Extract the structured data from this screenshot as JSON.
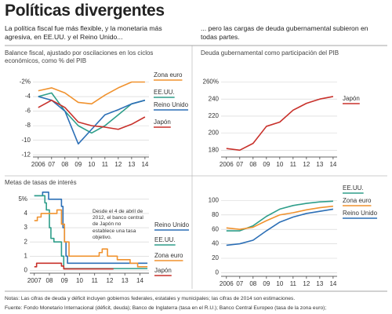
{
  "header": {
    "title": "Políticas divergentes",
    "left_subtitle": "La política fiscal fue más flexible, y la monetaria más agresiva, en EE.UU. y el Reino Unido...",
    "right_subtitle": "... pero las cargas de deuda gubernamental subieron en todas partes."
  },
  "footer": {
    "notes": "Notas: Las cifras de deuda y déficit incluyen gobiernos federales, estatales y municipales; las cifras de 2014 son estimaciones.",
    "source": "Fuente: Fondo Monetario Internacional (déficit, deuda); Banco de Inglaterra (tasa en el R.U.); Banco Central Europeo (tasa de la zona euro);"
  },
  "chart_data": [
    {
      "type": "line",
      "title": "Balance fiscal, ajustado por oscilaciones en los ciclos económicos, como % del PIB",
      "x": [
        2006,
        2007,
        2008,
        2009,
        2010,
        2011,
        2012,
        2013,
        2014
      ],
      "series": [
        {
          "name": "Zona euro",
          "color": "#f0922e",
          "values": [
            -3.2,
            -2.8,
            -3.5,
            -4.8,
            -5,
            -3.8,
            -2.8,
            -2,
            -2
          ]
        },
        {
          "name": "EE.UU.",
          "color": "#2e9e8a",
          "values": [
            -4,
            -3.5,
            -6,
            -8,
            -9,
            -8,
            -6.5,
            -5,
            -4.5
          ]
        },
        {
          "name": "Reino Unido",
          "color": "#2c6fb6",
          "values": [
            -4,
            -4.5,
            -6,
            -10.5,
            -8.5,
            -6.5,
            -5.8,
            -5,
            -4.5
          ]
        },
        {
          "name": "Japón",
          "color": "#c8312b",
          "values": [
            -5.5,
            -4.5,
            -5.5,
            -7.5,
            -8,
            -8.2,
            -8.5,
            -7.8,
            -6.8
          ]
        }
      ],
      "xlim": [
        2005.6,
        2014.3
      ],
      "ylim": [
        -12.3,
        -1.3
      ],
      "xticks": [
        2006,
        {
          "value": 2007,
          "label": "07"
        },
        {
          "value": 2008,
          "label": "08"
        },
        {
          "value": 2009,
          "label": "09"
        },
        {
          "value": 2010,
          "label": "10"
        },
        {
          "value": 2011,
          "label": "11"
        },
        {
          "value": 2012,
          "label": "12"
        },
        {
          "value": 2013,
          "label": "13"
        },
        {
          "value": 2014,
          "label": "14"
        }
      ],
      "yticks": [
        {
          "value": -2,
          "label": "-2%"
        },
        -4,
        -6,
        -8,
        -10,
        -12
      ],
      "grid": true
    },
    {
      "type": "line",
      "title": "Deuda gubernamental como participación del PIB",
      "x": [
        2006,
        2007,
        2008,
        2009,
        2010,
        2011,
        2012,
        2013,
        2014
      ],
      "series": [
        {
          "name": "Japón",
          "color": "#c8312b",
          "values": [
            182,
            180,
            188,
            208,
            213,
            227,
            235,
            240,
            243
          ]
        }
      ],
      "xlim": [
        2005.6,
        2014.3
      ],
      "ylim": [
        172,
        266
      ],
      "xticks": [
        2006,
        {
          "value": 2007,
          "label": "07"
        },
        {
          "value": 2008,
          "label": "08"
        },
        {
          "value": 2009,
          "label": "09"
        },
        {
          "value": 2010,
          "label": "10"
        },
        {
          "value": 2011,
          "label": "11"
        },
        {
          "value": 2012,
          "label": "12"
        },
        {
          "value": 2013,
          "label": "13"
        },
        {
          "value": 2014,
          "label": "14"
        }
      ],
      "yticks": [
        180,
        200,
        220,
        240,
        {
          "value": 260,
          "label": "260%"
        }
      ],
      "grid": true
    },
    {
      "type": "line",
      "title": "Metas de tasas de interés",
      "annotation": "Desde el 4 de abril de 2012, el banco central de Japón no establece una tasa objetivo.",
      "series": [
        {
          "name": "Reino Unido",
          "color": "#2c6fb6",
          "x": [
            2007,
            2007.55,
            2007.55,
            2007.95,
            2007.95,
            2008.8,
            2008.8,
            2008.9,
            2008.9,
            2009.0,
            2009.0,
            2009.1,
            2009.1,
            2009.2,
            2009.2,
            2014.5
          ],
          "values": [
            5.25,
            5.25,
            5.5,
            5.5,
            5,
            5,
            4.5,
            4.5,
            3,
            3,
            2,
            2,
            1,
            1,
            0.5,
            0.5
          ]
        },
        {
          "name": "EE.UU.",
          "color": "#2e9e8a",
          "x": [
            2007,
            2007.7,
            2007.7,
            2007.8,
            2007.8,
            2008.0,
            2008.0,
            2008.1,
            2008.1,
            2008.3,
            2008.3,
            2008.8,
            2008.8,
            2008.95,
            2008.95,
            2014.5
          ],
          "values": [
            5.25,
            5.25,
            4.75,
            4.75,
            4.25,
            4.25,
            3,
            3,
            2.25,
            2.25,
            2,
            2,
            1,
            1,
            0.125,
            0.125
          ]
        },
        {
          "name": "Zona euro",
          "color": "#f0922e",
          "x": [
            2007,
            2007.2,
            2007.2,
            2007.45,
            2007.45,
            2008.5,
            2008.5,
            2008.8,
            2008.8,
            2009.0,
            2009.0,
            2009.3,
            2009.3,
            2011.3,
            2011.3,
            2011.5,
            2011.5,
            2011.85,
            2011.85,
            2012.5,
            2012.5,
            2013.35,
            2013.35,
            2013.85,
            2013.85,
            2014.5
          ],
          "values": [
            3.5,
            3.5,
            3.75,
            3.75,
            4,
            4,
            4.25,
            4.25,
            3.25,
            3.25,
            2,
            2,
            1,
            1,
            1.25,
            1.25,
            1.5,
            1.5,
            1,
            1,
            0.75,
            0.75,
            0.5,
            0.5,
            0.25,
            0.25
          ]
        },
        {
          "name": "Japón",
          "color": "#c8312b",
          "x": [
            2007,
            2007.15,
            2007.15,
            2008.8,
            2008.8,
            2008.95,
            2008.95,
            2012.25
          ],
          "values": [
            0.25,
            0.25,
            0.5,
            0.5,
            0.3,
            0.3,
            0.1,
            0.1
          ]
        }
      ],
      "xlim": [
        2006.7,
        2014.6
      ],
      "ylim": [
        -0.2,
        5.6
      ],
      "xticks": [
        2007,
        {
          "value": 2008,
          "label": "08"
        },
        {
          "value": 2009,
          "label": "09"
        },
        {
          "value": 2010,
          "label": "10"
        },
        {
          "value": 2011,
          "label": "11"
        },
        {
          "value": 2012,
          "label": "12"
        },
        {
          "value": 2013,
          "label": "13"
        },
        {
          "value": 2014,
          "label": "14"
        }
      ],
      "yticks": [
        0,
        1,
        2,
        3,
        4,
        {
          "value": 5,
          "label": "5%"
        }
      ],
      "grid": true
    },
    {
      "type": "line",
      "x": [
        2006,
        2007,
        2008,
        2009,
        2010,
        2011,
        2012,
        2013,
        2014
      ],
      "series": [
        {
          "name": "EE.UU.",
          "color": "#2e9e8a",
          "values": [
            58,
            58,
            65,
            78,
            88,
            93,
            96,
            98,
            99
          ]
        },
        {
          "name": "Zona euro",
          "color": "#f0922e",
          "values": [
            62,
            60,
            63,
            72,
            80,
            83,
            87,
            90,
            92
          ]
        },
        {
          "name": "Reino Unido",
          "color": "#2c6fb6",
          "values": [
            38,
            40,
            45,
            58,
            70,
            77,
            82,
            85,
            88
          ]
        }
      ],
      "xlim": [
        2005.6,
        2014.3
      ],
      "ylim": [
        -5,
        108
      ],
      "xticks": [
        2006,
        {
          "value": 2007,
          "label": "07"
        },
        {
          "value": 2008,
          "label": "08"
        },
        {
          "value": 2009,
          "label": "09"
        },
        {
          "value": 2010,
          "label": "10"
        },
        {
          "value": 2011,
          "label": "11"
        },
        {
          "value": 2012,
          "label": "12"
        },
        {
          "value": 2013,
          "label": "13"
        },
        {
          "value": 2014,
          "label": "14"
        }
      ],
      "yticks": [
        0,
        20,
        40,
        60,
        80,
        100
      ],
      "grid": true
    }
  ]
}
